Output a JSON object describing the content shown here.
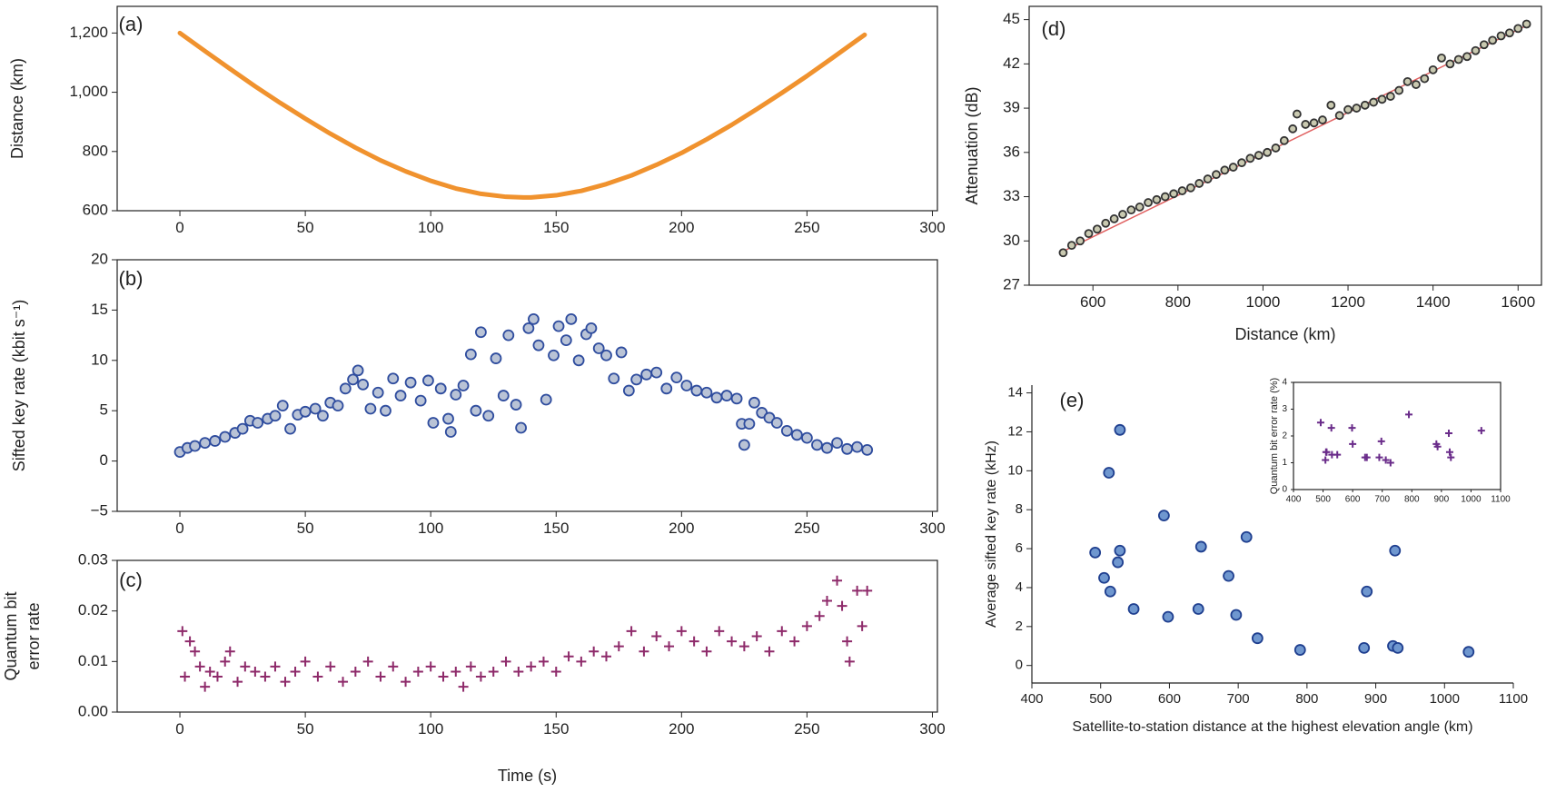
{
  "chart_data": [
    {
      "type": "line",
      "label": "(a)",
      "ylabel": "Distance (km)",
      "color": "#f0922e",
      "frame": true,
      "x": [
        0,
        10,
        20,
        30,
        40,
        50,
        60,
        70,
        80,
        90,
        100,
        110,
        120,
        130,
        137,
        140,
        150,
        160,
        170,
        180,
        190,
        200,
        210,
        220,
        230,
        240,
        250,
        260,
        270,
        273
      ],
      "values": [
        1200,
        1139,
        1079,
        1020,
        964,
        911,
        860,
        813,
        770,
        733,
        701,
        675,
        657,
        647,
        645,
        645,
        652,
        667,
        690,
        719,
        755,
        795,
        841,
        890,
        943,
        998,
        1055,
        1115,
        1176,
        1194
      ],
      "xlim": [
        -25,
        302
      ],
      "xticks": [
        0,
        50,
        100,
        150,
        200,
        250,
        300
      ],
      "ylim": [
        600,
        1290
      ],
      "yticks": [
        600,
        800,
        {
          "value": 1000,
          "label": "1,000"
        },
        {
          "value": 1200,
          "label": "1,200"
        }
      ]
    },
    {
      "type": "scatter",
      "marker": "circle",
      "label": "(b)",
      "ylabel": "Sifted key rate (kbit s⁻¹)",
      "color": "#b9c3d6",
      "edge": "#2e4c9e",
      "frame": true,
      "x": [
        0,
        3,
        6,
        10,
        14,
        18,
        22,
        25,
        28,
        31,
        35,
        38,
        41,
        44,
        47,
        50,
        54,
        57,
        60,
        63,
        66,
        69,
        71,
        73,
        76,
        79,
        82,
        85,
        88,
        92,
        96,
        99,
        101,
        104,
        107,
        108,
        110,
        113,
        116,
        118,
        120,
        123,
        126,
        129,
        131,
        134,
        136,
        139,
        141,
        143,
        146,
        149,
        151,
        154,
        156,
        159,
        162,
        164,
        167,
        170,
        173,
        176,
        179,
        182,
        186,
        190,
        194,
        198,
        202,
        206,
        210,
        214,
        218,
        222,
        224,
        225,
        227,
        229,
        232,
        235,
        238,
        242,
        246,
        250,
        254,
        258,
        262,
        266,
        270,
        274
      ],
      "values": [
        0.9,
        1.3,
        1.5,
        1.8,
        2.0,
        2.4,
        2.8,
        3.2,
        4.0,
        3.8,
        4.2,
        4.5,
        5.5,
        3.2,
        4.6,
        4.9,
        5.2,
        4.5,
        5.8,
        5.5,
        7.2,
        8.1,
        9.0,
        7.6,
        5.2,
        6.8,
        5.0,
        8.2,
        6.5,
        7.8,
        6.0,
        8.0,
        3.8,
        7.2,
        4.2,
        2.9,
        6.6,
        7.5,
        10.6,
        5.0,
        12.8,
        4.5,
        10.2,
        6.5,
        12.5,
        5.6,
        3.3,
        13.2,
        14.1,
        11.5,
        6.1,
        10.5,
        13.4,
        12.0,
        14.1,
        10.0,
        12.6,
        13.2,
        11.2,
        10.5,
        8.2,
        10.8,
        7.0,
        8.1,
        8.6,
        8.8,
        7.2,
        8.3,
        7.5,
        7.0,
        6.8,
        6.3,
        6.5,
        6.2,
        3.7,
        1.6,
        3.7,
        5.8,
        4.8,
        4.3,
        3.8,
        3.0,
        2.6,
        2.3,
        1.6,
        1.3,
        1.8,
        1.2,
        1.4,
        1.1
      ],
      "xlim": [
        -25,
        302
      ],
      "xticks": [
        0,
        50,
        100,
        150,
        200,
        250,
        300
      ],
      "ylim": [
        -5,
        20
      ],
      "yticks": [
        {
          "value": -5,
          "label": "−5"
        },
        0,
        5,
        10,
        15,
        20
      ]
    },
    {
      "type": "scatter",
      "marker": "plus",
      "label": "(c)",
      "ylabel": [
        "Quantum bit",
        "error rate"
      ],
      "xlabel": "Time (s)",
      "color": "#8e2a6a",
      "frame": true,
      "x": [
        1,
        2,
        4,
        6,
        8,
        10,
        12,
        15,
        18,
        20,
        23,
        26,
        30,
        34,
        38,
        42,
        46,
        50,
        55,
        60,
        65,
        70,
        75,
        80,
        85,
        90,
        95,
        100,
        105,
        110,
        113,
        116,
        120,
        125,
        130,
        135,
        140,
        145,
        150,
        155,
        160,
        165,
        170,
        175,
        180,
        185,
        190,
        195,
        200,
        205,
        210,
        215,
        220,
        225,
        230,
        235,
        240,
        245,
        250,
        255,
        258,
        262,
        264,
        266,
        267,
        270,
        272,
        274
      ],
      "values": [
        0.016,
        0.007,
        0.014,
        0.012,
        0.009,
        0.005,
        0.008,
        0.007,
        0.01,
        0.012,
        0.006,
        0.009,
        0.008,
        0.007,
        0.009,
        0.006,
        0.008,
        0.01,
        0.007,
        0.009,
        0.006,
        0.008,
        0.01,
        0.007,
        0.009,
        0.006,
        0.008,
        0.009,
        0.007,
        0.008,
        0.005,
        0.009,
        0.007,
        0.008,
        0.01,
        0.008,
        0.009,
        0.01,
        0.008,
        0.011,
        0.01,
        0.012,
        0.011,
        0.013,
        0.016,
        0.012,
        0.015,
        0.013,
        0.016,
        0.014,
        0.012,
        0.016,
        0.014,
        0.013,
        0.015,
        0.012,
        0.016,
        0.014,
        0.017,
        0.019,
        0.022,
        0.026,
        0.021,
        0.014,
        0.01,
        0.024,
        0.017,
        0.024
      ],
      "xlim": [
        -25,
        302
      ],
      "xticks": [
        0,
        50,
        100,
        150,
        200,
        250,
        300
      ],
      "ylim": [
        0,
        0.03
      ],
      "yticks": [
        {
          "value": 0,
          "label": "0.00"
        },
        0.01,
        0.02,
        0.03
      ]
    },
    {
      "type": "scatter",
      "marker": "circle",
      "label": "(d)",
      "ylabel": "Attenuation (dB)",
      "xlabel": "Distance (km)",
      "color": "#c9c9b0",
      "edge": "#333333",
      "frame": true,
      "x": [
        530,
        550,
        570,
        590,
        610,
        630,
        650,
        670,
        690,
        710,
        730,
        750,
        770,
        790,
        810,
        830,
        850,
        870,
        890,
        910,
        930,
        950,
        970,
        990,
        1010,
        1030,
        1050,
        1070,
        1080,
        1100,
        1120,
        1140,
        1160,
        1180,
        1200,
        1220,
        1240,
        1260,
        1280,
        1300,
        1320,
        1340,
        1360,
        1380,
        1400,
        1420,
        1440,
        1460,
        1480,
        1500,
        1520,
        1540,
        1560,
        1580,
        1600,
        1620
      ],
      "values": [
        29.2,
        29.7,
        30.0,
        30.5,
        30.8,
        31.2,
        31.5,
        31.8,
        32.1,
        32.3,
        32.6,
        32.8,
        33.0,
        33.2,
        33.4,
        33.6,
        33.9,
        34.2,
        34.5,
        34.8,
        35.0,
        35.3,
        35.6,
        35.8,
        36.0,
        36.3,
        36.8,
        37.6,
        38.6,
        37.9,
        38.0,
        38.2,
        39.2,
        38.5,
        38.9,
        39.0,
        39.2,
        39.4,
        39.6,
        39.8,
        40.2,
        40.8,
        40.6,
        41.0,
        41.6,
        42.4,
        42.0,
        42.3,
        42.5,
        42.9,
        43.3,
        43.6,
        43.9,
        44.1,
        44.4,
        44.7
      ],
      "fit": {
        "color": "#e06060",
        "x": [
          530,
          1620
        ],
        "values": [
          29.3,
          44.6
        ]
      },
      "xlim": [
        450,
        1655
      ],
      "xticks": [
        600,
        800,
        1000,
        1200,
        1400,
        1600
      ],
      "ylim": [
        27,
        45.9
      ],
      "yticks": [
        27,
        30,
        33,
        36,
        39,
        42,
        45
      ]
    },
    {
      "type": "scatter",
      "marker": "circle",
      "label": "(e)",
      "ylabel": "Average sifted key rate (kHz)",
      "xlabel": "Satellite-to-station distance at the highest elevation angle (km)",
      "color": "#6f97cf",
      "edge": "#1f3f8f",
      "frame": false,
      "x": [
        492,
        505,
        512,
        514,
        525,
        528,
        528,
        548,
        592,
        598,
        642,
        646,
        686,
        697,
        712,
        728,
        790,
        883,
        887,
        925,
        928,
        932,
        1035
      ],
      "values": [
        5.8,
        4.5,
        9.9,
        3.8,
        5.3,
        5.9,
        12.1,
        2.9,
        7.7,
        2.5,
        2.9,
        6.1,
        4.6,
        2.6,
        6.6,
        1.4,
        0.8,
        0.9,
        3.8,
        1.0,
        5.9,
        0.9,
        0.7
      ],
      "xlim": [
        400,
        1100
      ],
      "xticks": [
        400,
        500,
        600,
        700,
        800,
        900,
        1000,
        1100
      ],
      "ylim": [
        -0.9,
        14.4
      ],
      "yticks": [
        0,
        2,
        4,
        6,
        8,
        10,
        12,
        14
      ],
      "inset": {
        "type": "scatter",
        "marker": "plus",
        "ylabel": "Quantum bit error rate (%)",
        "color": "#6a2c8a",
        "frame": true,
        "x": [
          492,
          508,
          510,
          512,
          528,
          530,
          548,
          598,
          600,
          642,
          648,
          690,
          697,
          712,
          728,
          790,
          883,
          887,
          925,
          928,
          932,
          1035
        ],
        "values": [
          2.5,
          1.1,
          1.4,
          1.4,
          2.3,
          1.3,
          1.3,
          2.3,
          1.7,
          1.2,
          1.2,
          1.2,
          1.8,
          1.1,
          1.0,
          2.8,
          1.7,
          1.6,
          2.1,
          1.4,
          1.2,
          2.2
        ],
        "xlim": [
          400,
          1100
        ],
        "xticks": [
          400,
          500,
          600,
          700,
          800,
          900,
          1000,
          1100
        ],
        "ylim": [
          0,
          4
        ],
        "yticks": [
          0,
          1,
          2,
          3,
          4
        ]
      }
    }
  ]
}
